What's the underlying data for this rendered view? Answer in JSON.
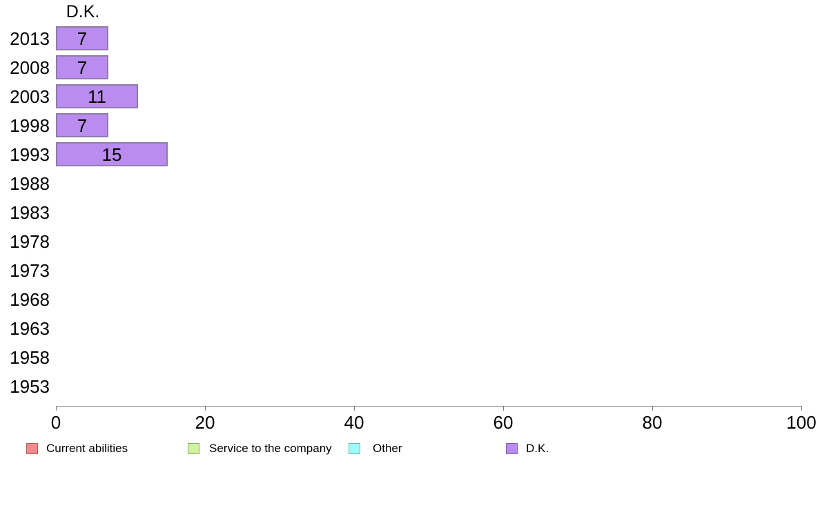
{
  "chart_data": {
    "type": "bar",
    "orientation": "horizontal",
    "title": "D.K.",
    "categories": [
      "2013",
      "2008",
      "2003",
      "1998",
      "1993",
      "1988",
      "1983",
      "1978",
      "1973",
      "1968",
      "1963",
      "1958",
      "1953"
    ],
    "values": [
      7,
      7,
      11,
      7,
      15,
      null,
      null,
      null,
      null,
      null,
      null,
      null,
      null
    ],
    "value_labels": [
      "7",
      "7",
      "11",
      "7",
      "15",
      "",
      "",
      "",
      "",
      "",
      "",
      "",
      ""
    ],
    "xlabel": "",
    "ylabel": "",
    "xlim": [
      0,
      100
    ],
    "xticks": [
      0,
      20,
      40,
      60,
      80,
      100
    ],
    "grid": false,
    "legend_position": "bottom",
    "bar_color": "#ba8cf0",
    "bar_border_color": "#8f7ca6",
    "axis_color": "#7f7f7f",
    "legend": [
      {
        "label": "Current abilities",
        "color": "#f28b8b"
      },
      {
        "label": "Service to the company",
        "color": "#cdf5a0"
      },
      {
        "label": "Other",
        "color": "#9ffcfc"
      },
      {
        "label": "D.K.",
        "color": "#ba8cf0"
      }
    ]
  }
}
